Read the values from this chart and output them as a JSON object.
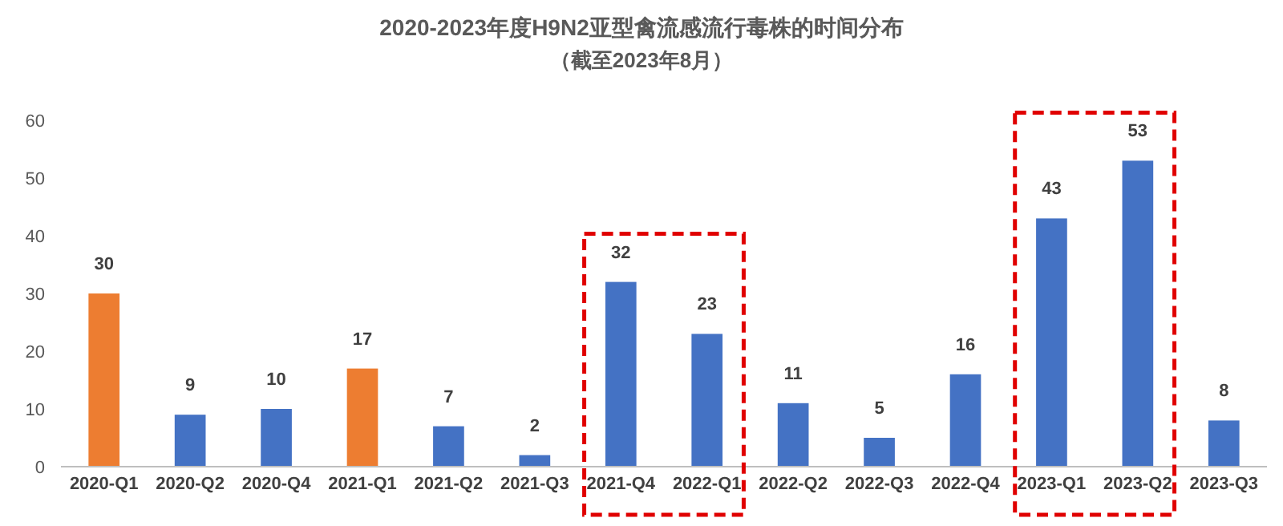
{
  "chart_data": {
    "type": "bar",
    "title": "2020-2023年度H9N2亚型禽流感流行毒株的时间分布",
    "subtitle": "（截至2023年8月）",
    "categories": [
      "2020-Q1",
      "2020-Q2",
      "2020-Q4",
      "2021-Q1",
      "2021-Q2",
      "2021-Q3",
      "2021-Q4",
      "2022-Q1",
      "2022-Q2",
      "2022-Q3",
      "2022-Q4",
      "2023-Q1",
      "2023-Q2",
      "2023-Q3"
    ],
    "values": [
      30,
      9,
      10,
      17,
      7,
      2,
      32,
      23,
      11,
      5,
      16,
      43,
      53,
      8
    ],
    "colors": [
      "#ed7d31",
      "#4472c4",
      "#4472c4",
      "#ed7d31",
      "#4472c4",
      "#4472c4",
      "#4472c4",
      "#4472c4",
      "#4472c4",
      "#4472c4",
      "#4472c4",
      "#4472c4",
      "#4472c4",
      "#4472c4"
    ],
    "ylim": [
      0,
      60
    ],
    "yticks": [
      0,
      10,
      20,
      30,
      40,
      50,
      60
    ],
    "data_labels": true,
    "grid": false
  }
}
